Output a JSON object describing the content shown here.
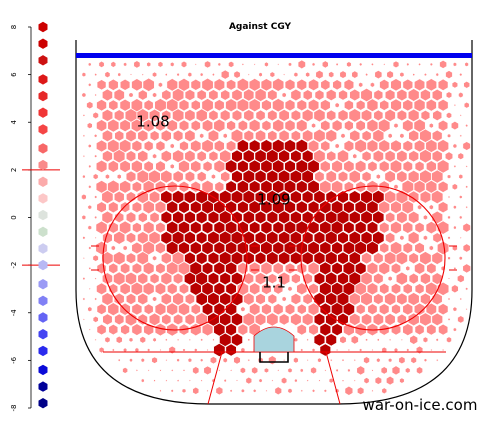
{
  "chart_data": {
    "type": "heatmap",
    "title": "Against CGY",
    "watermark": "war-on-ice.com",
    "scale": {
      "ticks": [
        8,
        6,
        4,
        2,
        0,
        -2,
        -4,
        -6,
        -8
      ],
      "ylim": [
        -8,
        8
      ],
      "reference_lines": [
        2,
        -2
      ],
      "swatches": [
        {
          "value": 8.0,
          "color": "#cc0000"
        },
        {
          "value": 7.3,
          "color": "#cc0000"
        },
        {
          "value": 6.6,
          "color": "#cc1111"
        },
        {
          "value": 5.8,
          "color": "#dd1818"
        },
        {
          "value": 5.1,
          "color": "#e62929"
        },
        {
          "value": 4.4,
          "color": "#f03535"
        },
        {
          "value": 3.7,
          "color": "#f54545"
        },
        {
          "value": 2.9,
          "color": "#f76767"
        },
        {
          "value": 2.2,
          "color": "#f98a8a"
        },
        {
          "value": 1.5,
          "color": "#fbaaaa"
        },
        {
          "value": 0.8,
          "color": "#fcc7c7"
        },
        {
          "value": 0.1,
          "color": "#dde3dd"
        },
        {
          "value": -0.6,
          "color": "#cce0cc"
        },
        {
          "value": -1.3,
          "color": "#ccccf0"
        },
        {
          "value": -2.0,
          "color": "#b8b8f4"
        },
        {
          "value": -2.8,
          "color": "#9a9af5"
        },
        {
          "value": -3.5,
          "color": "#8080f5"
        },
        {
          "value": -4.2,
          "color": "#6464f4"
        },
        {
          "value": -4.9,
          "color": "#4444f2"
        },
        {
          "value": -5.6,
          "color": "#2a2aee"
        },
        {
          "value": -6.4,
          "color": "#0a0ad8"
        },
        {
          "value": -7.1,
          "color": "#000099"
        },
        {
          "value": -7.8,
          "color": "#000088"
        }
      ]
    },
    "zones": [
      {
        "label": "1.08",
        "value": 1.08,
        "zone": "point",
        "color": "#ff8a8a"
      },
      {
        "label": "1.09",
        "value": 1.09,
        "zone": "slot",
        "color": "#b80000"
      },
      {
        "label": "1.1",
        "value": 1.1,
        "zone": "low",
        "color": "#ff8a8a"
      }
    ],
    "colors": {
      "zone_light": "#ff8a8a",
      "zone_dark": "#b80000",
      "crease": "#a9d4de",
      "blue_line": "#0000ee",
      "red_lines": "#ee0000"
    }
  }
}
